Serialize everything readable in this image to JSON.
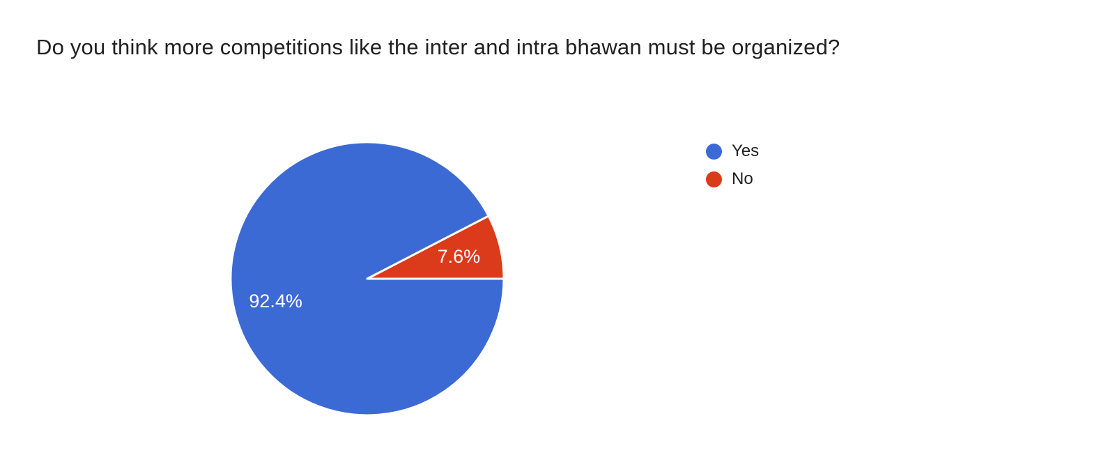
{
  "page": {
    "background_color": "#ffffff",
    "title_color": "#212121"
  },
  "chart_data": {
    "type": "pie",
    "title": "Do you think more competitions like the inter and intra bhawan must be organized?",
    "categories": [
      "Yes",
      "No"
    ],
    "values": [
      92.4,
      7.6
    ],
    "slice_labels": [
      "92.4%",
      "7.6%"
    ],
    "slice_colors": [
      "#3c6ad4",
      "#db3a1b"
    ],
    "slice_label_color": "#ffffff",
    "start_angle_deg": 0,
    "direction": "clockwise",
    "legend_position": "right",
    "grid": false
  },
  "legend": {
    "items": [
      {
        "label": "Yes",
        "color": "#3c6ad4"
      },
      {
        "label": "No",
        "color": "#db3a1b"
      }
    ]
  }
}
